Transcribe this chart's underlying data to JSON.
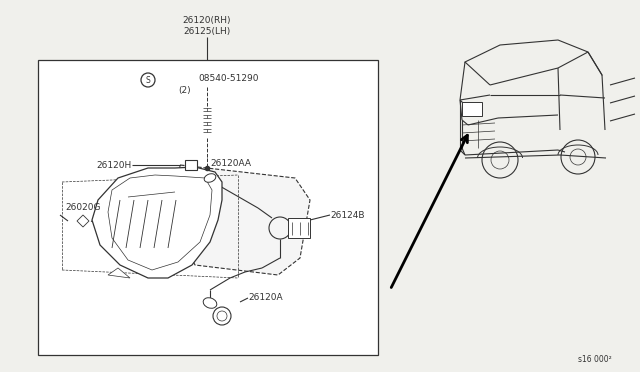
{
  "bg_color": "#f0f0ec",
  "line_color": "#333333",
  "box_bg": "#ffffff",
  "lbl_top1": "26120(RH)",
  "lbl_top2": "26125(LH)",
  "lbl_screw": "08540-51290",
  "lbl_screw_qty": "(2)",
  "lbl_26120H": "26120H",
  "lbl_26120AA": "26120AA",
  "lbl_26020G": "26020G",
  "lbl_26124B": "26124B",
  "lbl_26120A": "26120A",
  "ref_code": "s16 000²",
  "fs": 6.5,
  "fs_small": 5.5
}
